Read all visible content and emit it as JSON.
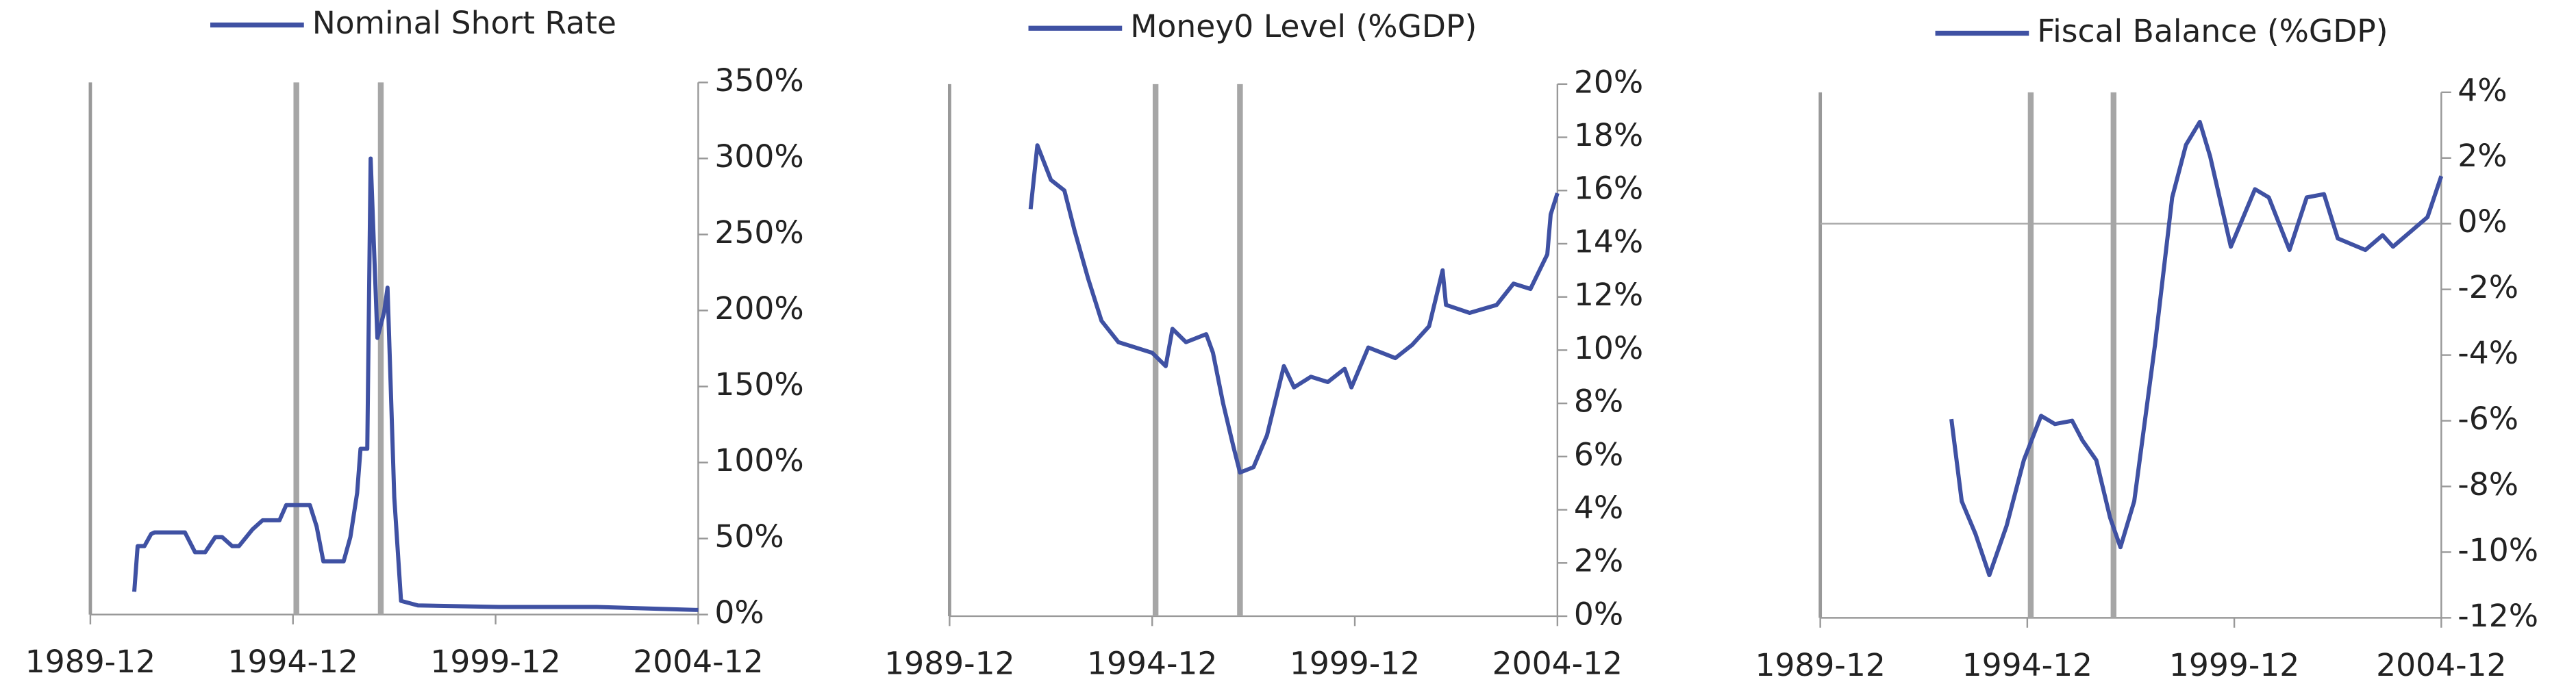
{
  "chart_data": [
    {
      "type": "line",
      "series": [
        {
          "name": "Nominal Short Rate",
          "color": "#3f51a3",
          "x": [
            "1991-01",
            "1991-02",
            "1991-04",
            "1991-06",
            "1991-07",
            "1992-04",
            "1992-07",
            "1992-10",
            "1993-01",
            "1993-03",
            "1993-06",
            "1993-08",
            "1993-12",
            "1994-03",
            "1994-08",
            "1994-10",
            "1995-05",
            "1995-07",
            "1995-09",
            "1996-03",
            "1996-05",
            "1996-07",
            "1996-08",
            "1996-10",
            "1996-11",
            "1997-01",
            "1997-03",
            "1997-04",
            "1997-06",
            "1997-08",
            "1998-01",
            "2000-01",
            "2002-06",
            "2004-12"
          ],
          "values": [
            15,
            45,
            45,
            53,
            54,
            54,
            41,
            41,
            51,
            51,
            45,
            45,
            56,
            62,
            62,
            72,
            72,
            58,
            35,
            35,
            51,
            80,
            109,
            109,
            300,
            182,
            199,
            215,
            77,
            9,
            6,
            5,
            5,
            3
          ]
        }
      ],
      "xlim": [
        "1989-12",
        "2004-12"
      ],
      "xticks": [
        "1989-12",
        "1994-12",
        "1999-12",
        "2004-12"
      ],
      "ylim": [
        0,
        350
      ],
      "yticks": [
        {
          "value": 0,
          "label": "0%"
        },
        {
          "value": 50,
          "label": "50%"
        },
        {
          "value": 100,
          "label": "100%"
        },
        {
          "value": 150,
          "label": "150%"
        },
        {
          "value": 200,
          "label": "200%"
        },
        {
          "value": 250,
          "label": "250%"
        },
        {
          "value": 300,
          "label": "300%"
        },
        {
          "value": 350,
          "label": "350%"
        }
      ],
      "vlines": [
        "1995-01",
        "1997-02"
      ],
      "vline_color": "#a6a6a6"
    },
    {
      "type": "line",
      "series": [
        {
          "name": "Money0 Level (%GDP)",
          "color": "#3f51a3",
          "x": [
            "1991-12",
            "1992-02",
            "1992-06",
            "1992-10",
            "1993-01",
            "1993-05",
            "1993-09",
            "1994-02",
            "1994-07",
            "1994-12",
            "1995-04",
            "1995-06",
            "1995-10",
            "1996-04",
            "1996-06",
            "1996-09",
            "1996-12",
            "1997-02",
            "1997-06",
            "1997-10",
            "1998-03",
            "1998-06",
            "1998-11",
            "1999-04",
            "1999-09",
            "1999-11",
            "2000-04",
            "2000-12",
            "2001-05",
            "2001-10",
            "2002-02",
            "2002-03",
            "2002-10",
            "2003-06",
            "2003-11",
            "2004-04",
            "2004-09",
            "2004-10",
            "2004-12"
          ],
          "values": [
            15.3,
            17.7,
            16.4,
            16.0,
            14.5,
            12.7,
            11.1,
            10.3,
            10.1,
            9.9,
            9.4,
            10.8,
            10.3,
            10.6,
            9.9,
            8.0,
            6.4,
            5.4,
            5.6,
            6.8,
            9.4,
            8.6,
            9.0,
            8.8,
            9.3,
            8.6,
            10.1,
            9.7,
            10.2,
            10.9,
            13.0,
            11.7,
            11.4,
            11.7,
            12.5,
            12.3,
            13.6,
            15.1,
            15.9
          ]
        }
      ],
      "xlim": [
        "1989-12",
        "2004-12"
      ],
      "xticks": [
        "1989-12",
        "1994-12",
        "1999-12",
        "2004-12"
      ],
      "ylim": [
        0,
        20
      ],
      "yticks": [
        {
          "value": 0,
          "label": "0%"
        },
        {
          "value": 2,
          "label": "2%"
        },
        {
          "value": 4,
          "label": "4%"
        },
        {
          "value": 6,
          "label": "6%"
        },
        {
          "value": 8,
          "label": "8%"
        },
        {
          "value": 10,
          "label": "10%"
        },
        {
          "value": 12,
          "label": "12%"
        },
        {
          "value": 14,
          "label": "14%"
        },
        {
          "value": 16,
          "label": "16%"
        },
        {
          "value": 18,
          "label": "18%"
        },
        {
          "value": 20,
          "label": "20%"
        }
      ],
      "vlines": [
        "1995-01",
        "1997-02"
      ],
      "vline_color": "#a6a6a6"
    },
    {
      "type": "line",
      "series": [
        {
          "name": "Fiscal Balance (%GDP)",
          "color": "#3f51a3",
          "x": [
            "1993-02",
            "1993-05",
            "1993-09",
            "1994-01",
            "1994-06",
            "1994-11",
            "1995-04",
            "1995-08",
            "1996-01",
            "1996-04",
            "1996-08",
            "1996-12",
            "1997-03",
            "1997-07",
            "1998-01",
            "1998-06",
            "1998-10",
            "1999-02",
            "1999-05",
            "1999-11",
            "2000-06",
            "2000-10",
            "2001-04",
            "2001-09",
            "2002-02",
            "2002-06",
            "2003-02",
            "2003-07",
            "2003-10",
            "2004-08",
            "2004-12"
          ],
          "values": [
            -5.95,
            -8.45,
            -9.45,
            -10.7,
            -9.2,
            -7.2,
            -5.85,
            -6.1,
            -6.0,
            -6.6,
            -7.2,
            -8.95,
            -9.85,
            -8.45,
            -3.7,
            0.8,
            2.4,
            3.1,
            2.05,
            -0.7,
            1.05,
            0.8,
            -0.8,
            0.8,
            0.9,
            -0.45,
            -0.8,
            -0.35,
            -0.7,
            0.2,
            1.45
          ]
        }
      ],
      "xlim": [
        "1989-12",
        "2004-12"
      ],
      "xticks": [
        "1989-12",
        "1994-12",
        "1999-12",
        "2004-12"
      ],
      "ylim": [
        -12,
        4
      ],
      "yticks": [
        {
          "value": -12,
          "label": "-12%"
        },
        {
          "value": -10,
          "label": "-10%"
        },
        {
          "value": -8,
          "label": "-8%"
        },
        {
          "value": -6,
          "label": "-6%"
        },
        {
          "value": -4,
          "label": "-4%"
        },
        {
          "value": -2,
          "label": "-2%"
        },
        {
          "value": 0,
          "label": "0%"
        },
        {
          "value": 2,
          "label": "2%"
        },
        {
          "value": 4,
          "label": "4%"
        }
      ],
      "vlines": [
        "1995-01",
        "1997-01"
      ],
      "vline_color": "#a6a6a6"
    }
  ]
}
